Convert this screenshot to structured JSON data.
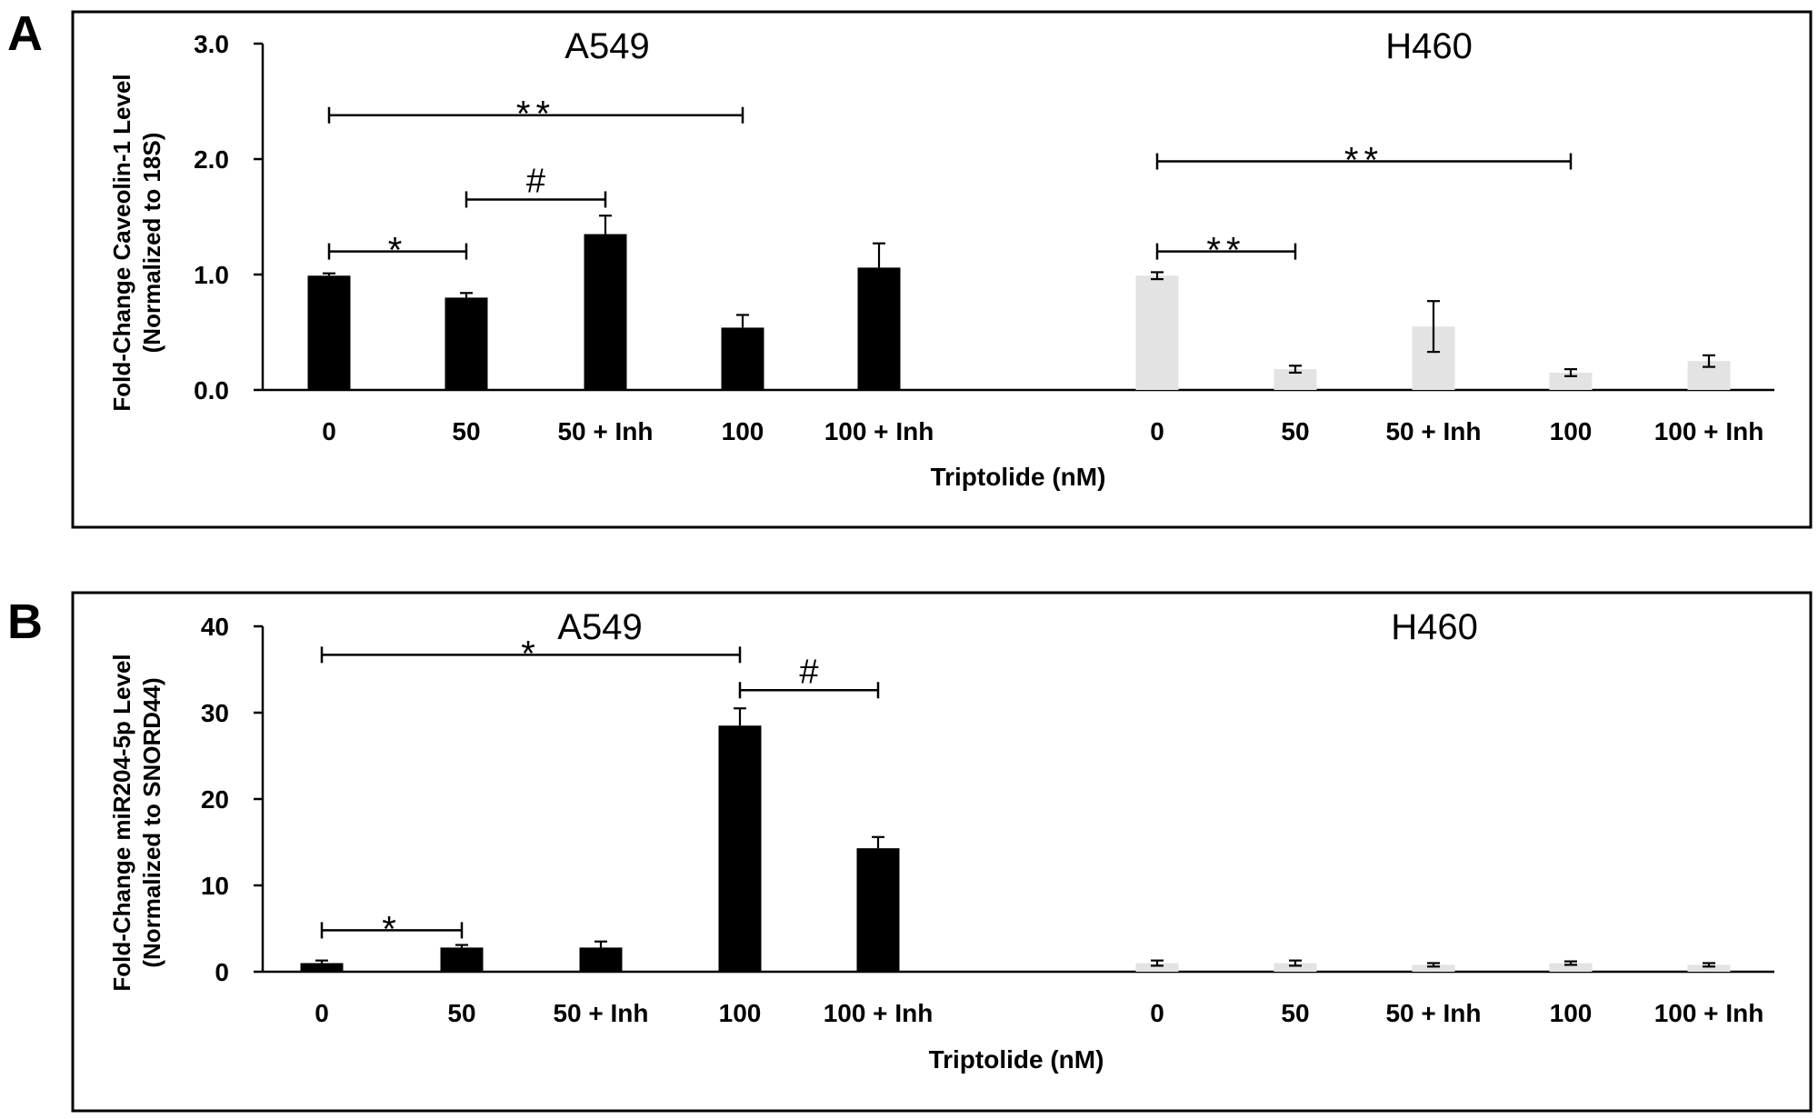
{
  "panels": [
    {
      "letter": "A",
      "ylabel_line1": "Fold-Change Caveolin-1 Level",
      "ylabel_line2": "(Normalized to 18S)",
      "xlabel": "Triptolide (nM)",
      "group_labels": [
        "A549",
        "H460"
      ]
    },
    {
      "letter": "B",
      "ylabel_line1": "Fold-Change miR204-5p Level",
      "ylabel_line2": "(Normalized to SNORD44)",
      "xlabel": "Triptolide (nM)",
      "group_labels": [
        "A549",
        "H460"
      ]
    }
  ],
  "chart_data": [
    {
      "type": "bar",
      "panel": "A",
      "title": "",
      "xlabel": "Triptolide (nM)",
      "ylabel": "Fold-Change Caveolin-1 Level (Normalized to 18S)",
      "ylim": [
        0,
        3
      ],
      "yticks": [
        "0.0",
        "1.0",
        "2.0",
        "3.0"
      ],
      "ytick_values": [
        0,
        1,
        2,
        3
      ],
      "grid": false,
      "categories": [
        "0",
        "50",
        "50 + Inh",
        "100",
        "100 + Inh",
        "0",
        "50",
        "50 + Inh",
        "100",
        "100 + Inh"
      ],
      "groups": [
        "A549",
        "H460"
      ],
      "values": [
        0.99,
        0.8,
        1.35,
        0.54,
        1.06,
        0.99,
        0.18,
        0.55,
        0.15,
        0.25
      ],
      "errors": [
        0.02,
        0.04,
        0.16,
        0.11,
        0.21,
        0.03,
        0.03,
        0.22,
        0.03,
        0.05
      ],
      "colors": [
        "#000000",
        "#000000",
        "#000000",
        "#000000",
        "#000000",
        "#e3e3e3",
        "#e3e3e3",
        "#e3e3e3",
        "#e3e3e3",
        "#e3e3e3"
      ],
      "error_cap_only_top": [
        true,
        true,
        true,
        true,
        true,
        false,
        false,
        false,
        false,
        false
      ],
      "significance": [
        {
          "from": 0,
          "to": 1,
          "y": 1.2,
          "label": "*"
        },
        {
          "from": 1,
          "to": 2,
          "y": 1.65,
          "label": "#"
        },
        {
          "from": 0,
          "to": 3,
          "y": 2.38,
          "label": "**"
        },
        {
          "from": 5,
          "to": 6,
          "y": 1.2,
          "label": "**"
        },
        {
          "from": 5,
          "to": 8,
          "y": 1.98,
          "label": "**"
        }
      ]
    },
    {
      "type": "bar",
      "panel": "B",
      "title": "",
      "xlabel": "Triptolide (nM)",
      "ylabel": "Fold-Change miR204-5p Level (Normalized to SNORD44)",
      "ylim": [
        0,
        40
      ],
      "yticks": [
        "0",
        "10",
        "20",
        "30",
        "40"
      ],
      "ytick_values": [
        0,
        10,
        20,
        30,
        40
      ],
      "grid": false,
      "categories": [
        "0",
        "50",
        "50 + Inh",
        "100",
        "100 + Inh",
        "0",
        "50",
        "50 + Inh",
        "100",
        "100 + Inh"
      ],
      "groups": [
        "A549",
        "H460"
      ],
      "values": [
        1.0,
        2.8,
        2.8,
        28.5,
        14.3,
        1.0,
        1.0,
        0.8,
        1.0,
        0.8
      ],
      "errors": [
        0.3,
        0.3,
        0.7,
        2.0,
        1.3,
        0.3,
        0.3,
        0.2,
        0.2,
        0.2
      ],
      "colors": [
        "#000000",
        "#000000",
        "#000000",
        "#000000",
        "#000000",
        "#e3e3e3",
        "#e3e3e3",
        "#e3e3e3",
        "#e3e3e3",
        "#e3e3e3"
      ],
      "error_cap_only_top": [
        true,
        true,
        true,
        true,
        true,
        false,
        false,
        false,
        false,
        false
      ],
      "significance": [
        {
          "from": 0,
          "to": 1,
          "y": 4.8,
          "label": "*"
        },
        {
          "from": 0,
          "to": 3,
          "y": 36.7,
          "label": "*"
        },
        {
          "from": 3,
          "to": 4,
          "y": 32.6,
          "label": "#"
        }
      ]
    }
  ]
}
